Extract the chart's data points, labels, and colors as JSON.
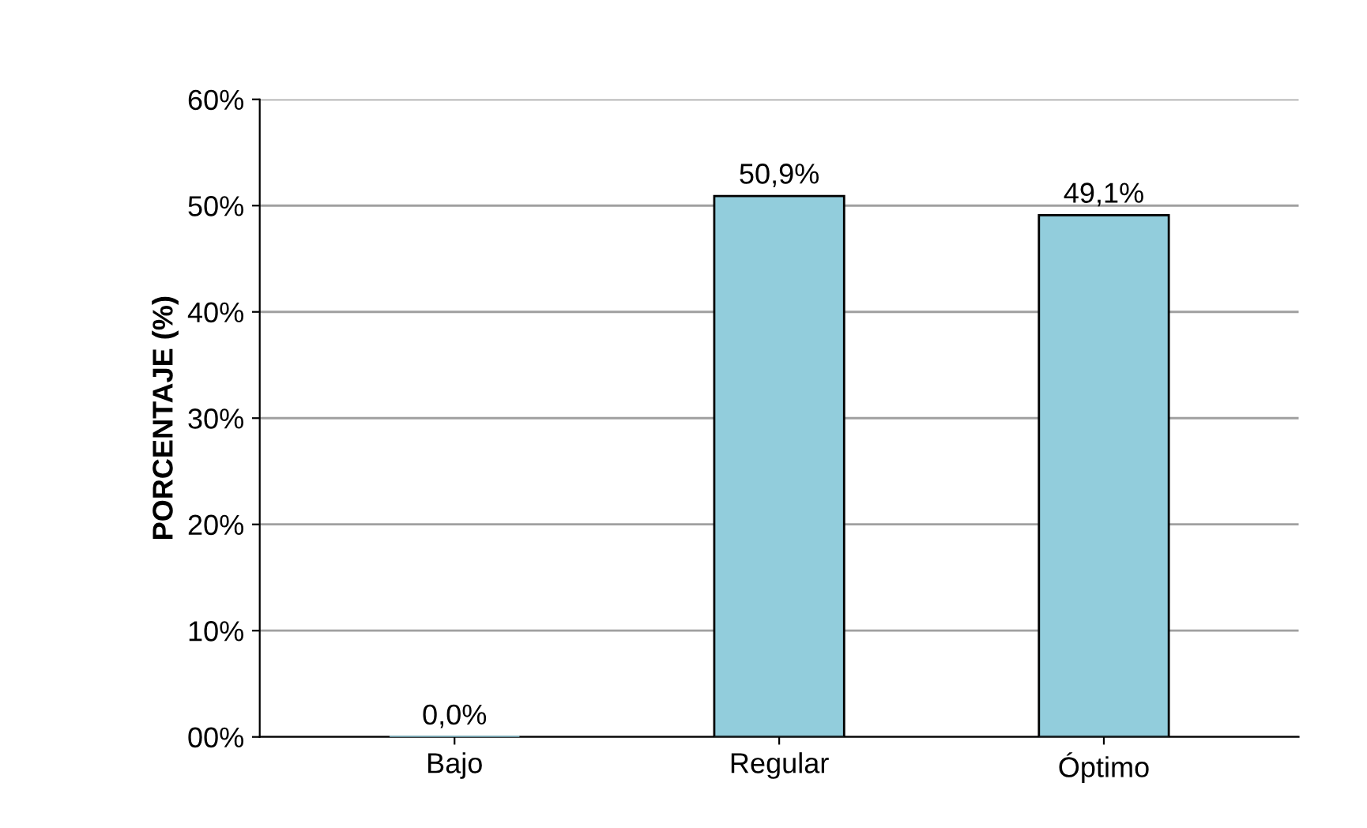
{
  "chart_data": {
    "type": "bar",
    "ylabel": "PORCENTAJE (%)",
    "categories": [
      "Bajo",
      "Regular",
      "Óptimo"
    ],
    "values": [
      0,
      50.9,
      49.1
    ],
    "value_labels": [
      "0,0%",
      "50,9%",
      "49,1%"
    ],
    "color": "#92cddc",
    "ylim": [
      0,
      60
    ],
    "yticks": [
      {
        "value": 0,
        "label": "00%"
      },
      {
        "value": 10,
        "label": "10%"
      },
      {
        "value": 20,
        "label": "20%"
      },
      {
        "value": 30,
        "label": "30%"
      },
      {
        "value": 40,
        "label": "40%"
      },
      {
        "value": 50,
        "label": "50%"
      },
      {
        "value": 60,
        "label": "60%"
      }
    ],
    "grid": "y",
    "legend": false
  }
}
